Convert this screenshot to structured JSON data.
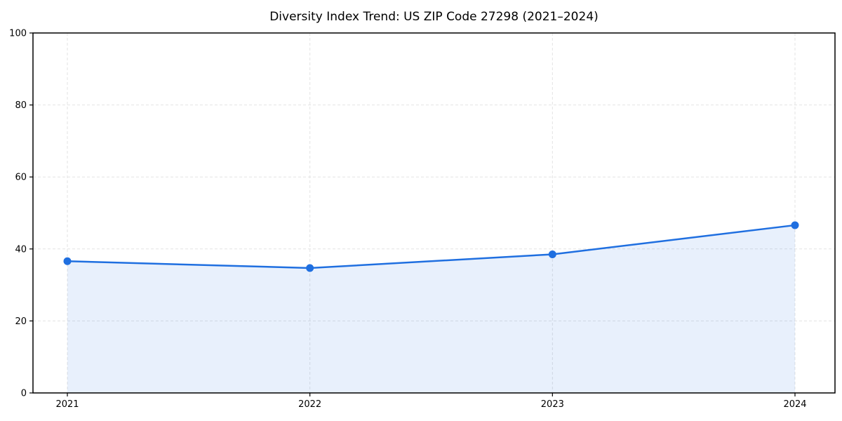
{
  "page": {
    "background_color": "#ffffff"
  },
  "chart_data": {
    "type": "area",
    "title": "Diversity Index Trend: US ZIP Code 27298 (2021–2024)",
    "x": [
      2021,
      2022,
      2023,
      2024
    ],
    "xticks": [
      "2021",
      "2022",
      "2023",
      "2024"
    ],
    "series": [
      {
        "name": "Diversity Index",
        "values": [
          36.6,
          34.7,
          38.5,
          46.6
        ]
      }
    ],
    "xlabel": "",
    "ylabel": "",
    "ylim": [
      0,
      100
    ],
    "yticks": [
      0,
      20,
      40,
      60,
      80,
      100
    ],
    "grid": "dashed",
    "legend": "none",
    "marker": "circle",
    "colors": {
      "line": "#1f6fe0",
      "marker": "#1f6fe0",
      "fill": "#1f6fe0",
      "fill_opacity": 0.1,
      "gridline": "#e3e3e3",
      "spine": "#000000",
      "tick_label": "#000000"
    }
  }
}
